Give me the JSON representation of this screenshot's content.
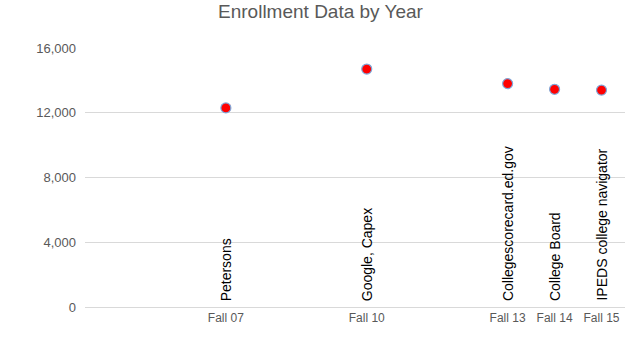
{
  "chart_data": {
    "type": "scatter",
    "title": "Enrollment Data by Year",
    "x": [
      7,
      10,
      13,
      14,
      15
    ],
    "values": [
      12300,
      14700,
      13800,
      13450,
      13400
    ],
    "annotations": [
      "Petersons",
      "Google, Capex",
      "Collegescorecard.ed.gov",
      "College Board",
      "IPEDS college navigator"
    ],
    "color": "#ff0000",
    "marker": "circle",
    "xlim": [
      4,
      15.5
    ],
    "xticks": [
      {
        "value": 7,
        "label": "Fall 07"
      },
      {
        "value": 10,
        "label": "Fall 10"
      },
      {
        "value": 13,
        "label": "Fall 13"
      },
      {
        "value": 14,
        "label": "Fall 14"
      },
      {
        "value": 15,
        "label": "Fall 15"
      }
    ],
    "ylim": [
      0,
      16000
    ],
    "yticks": [
      0,
      {
        "value": 4000,
        "label": "4,000"
      },
      {
        "value": 8000,
        "label": "8,000"
      },
      {
        "value": 12000,
        "label": "12,000"
      },
      {
        "value": 16000,
        "label": "16,000"
      }
    ],
    "grid": true
  }
}
